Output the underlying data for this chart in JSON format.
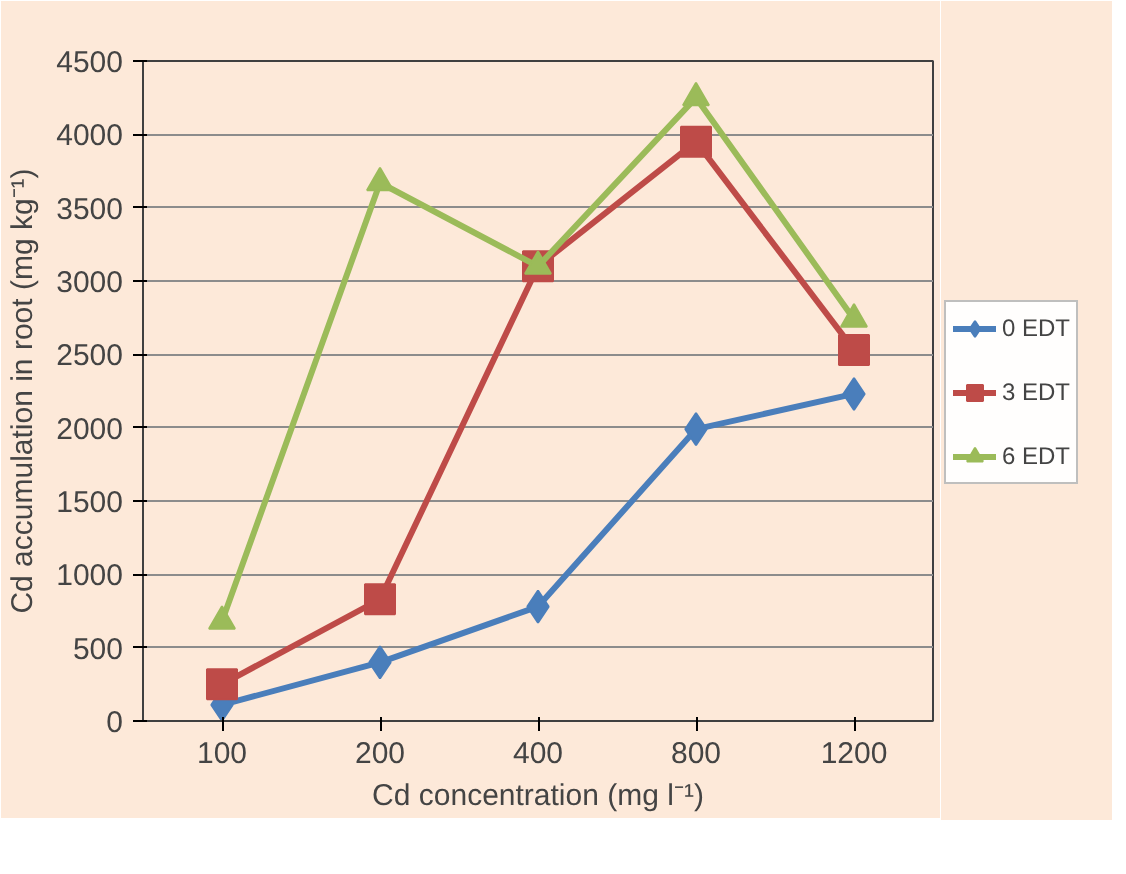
{
  "chart_data": {
    "type": "line",
    "xlabel": "Cd concentration (mg l⁻¹)",
    "ylabel": "Cd accumulation in root (mg kg⁻¹)",
    "categories": [
      "100",
      "200",
      "400",
      "800",
      "1200"
    ],
    "series": [
      {
        "name": "0 EDT",
        "color": "#4a7ebb",
        "marker": "diamond",
        "values": [
          110,
          400,
          780,
          1990,
          2230
        ]
      },
      {
        "name": "3 EDT",
        "color": "#be4b48",
        "marker": "square",
        "values": [
          250,
          830,
          3100,
          3950,
          2530
        ]
      },
      {
        "name": "6 EDT",
        "color": "#9bbb59",
        "marker": "triangle",
        "values": [
          680,
          3670,
          3100,
          4250,
          2740
        ]
      }
    ],
    "ylim": [
      0,
      4500
    ],
    "yticks": [
      0,
      500,
      1000,
      1500,
      2000,
      2500,
      3000,
      3500,
      4000,
      4500
    ],
    "grid": "y",
    "legend": "right",
    "line_style": "solid"
  }
}
